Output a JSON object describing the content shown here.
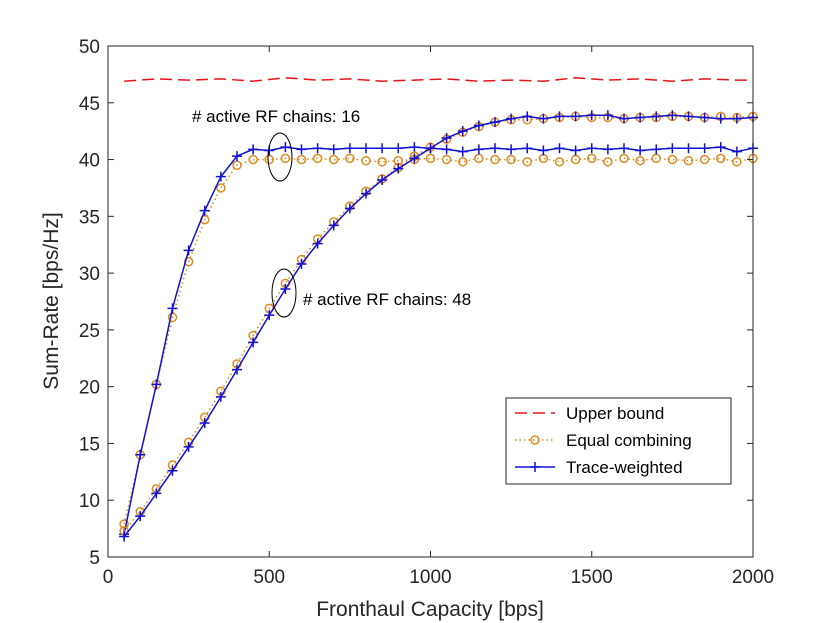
{
  "chart_data": {
    "type": "line",
    "xlabel": "Fronthaul Capacity [bps]",
    "ylabel": "Sum-Rate [bps/Hz]",
    "xlim": [
      0,
      2000
    ],
    "ylim": [
      5,
      50
    ],
    "xticks": [
      0,
      500,
      1000,
      1500,
      2000
    ],
    "yticks": [
      5,
      10,
      15,
      20,
      25,
      30,
      35,
      40,
      45,
      50
    ],
    "grid": false,
    "legend_position": "bottom-right",
    "annotations": [
      {
        "text": "# active RF chains: 16",
        "x": 540,
        "y": 40.2
      },
      {
        "text": "# active RF chains: 48",
        "x": 540,
        "y": 28.2
      }
    ],
    "series": [
      {
        "name": "Upper bound",
        "color": "#e8141b",
        "style": "dashed",
        "marker": "none",
        "x": [
          50,
          150,
          250,
          350,
          450,
          550,
          650,
          750,
          850,
          950,
          1050,
          1150,
          1250,
          1350,
          1450,
          1550,
          1650,
          1750,
          1850,
          1950,
          2000
        ],
        "y": [
          46.9,
          47.1,
          47.0,
          47.1,
          46.9,
          47.2,
          47.0,
          47.1,
          46.9,
          47.0,
          47.1,
          46.9,
          47.0,
          46.9,
          47.2,
          47.0,
          47.1,
          46.9,
          47.1,
          47.0,
          47.0
        ]
      },
      {
        "name": "Equal combining",
        "color": "#dd8a1e",
        "style": "dotted",
        "marker": "circle",
        "x": [
          50,
          100,
          150,
          200,
          250,
          300,
          350,
          400,
          450,
          500,
          550,
          600,
          650,
          700,
          750,
          800,
          850,
          900,
          950,
          1000,
          1050,
          1100,
          1150,
          1200,
          1250,
          1300,
          1350,
          1400,
          1450,
          1500,
          1550,
          1600,
          1650,
          1700,
          1750,
          1800,
          1850,
          1900,
          1950,
          2000
        ],
        "y": [
          7.9,
          14.0,
          20.2,
          26.1,
          31.0,
          34.7,
          37.5,
          39.5,
          40.0,
          40.0,
          40.1,
          40.0,
          40.1,
          40.0,
          40.1,
          39.9,
          39.8,
          39.9,
          40.0,
          40.1,
          40.0,
          39.8,
          40.1,
          40.0,
          40.0,
          39.8,
          40.1,
          39.8,
          40.0,
          40.1,
          39.8,
          40.1,
          39.9,
          40.1,
          40.0,
          39.9,
          40.0,
          40.1,
          39.8,
          40.1
        ]
      },
      {
        "name": "Trace-weighted",
        "color": "#1010d8",
        "style": "solid",
        "marker": "plus",
        "x": [
          50,
          100,
          150,
          200,
          250,
          300,
          350,
          400,
          450,
          500,
          550,
          600,
          650,
          700,
          750,
          800,
          850,
          900,
          950,
          1000,
          1050,
          1100,
          1150,
          1200,
          1250,
          1300,
          1350,
          1400,
          1450,
          1500,
          1550,
          1600,
          1650,
          1700,
          1750,
          1800,
          1850,
          1900,
          1950,
          2000
        ],
        "y": [
          7.0,
          14.0,
          20.2,
          26.9,
          32.0,
          35.5,
          38.5,
          40.3,
          40.9,
          40.8,
          41.1,
          40.9,
          41.0,
          40.9,
          41.0,
          41.0,
          41.0,
          41.0,
          41.1,
          41.0,
          40.9,
          40.7,
          40.9,
          41.0,
          40.9,
          41.0,
          40.8,
          41.0,
          40.8,
          41.0,
          40.9,
          41.0,
          40.8,
          40.9,
          41.0,
          41.0,
          41.0,
          41.1,
          40.7,
          41.0
        ]
      },
      {
        "name": "Equal combining",
        "color": "#dd8a1e",
        "style": "dotted",
        "marker": "circle",
        "x": [
          50,
          100,
          150,
          200,
          250,
          300,
          350,
          400,
          450,
          500,
          550,
          600,
          650,
          700,
          750,
          800,
          850,
          900,
          950,
          1000,
          1050,
          1100,
          1150,
          1200,
          1250,
          1300,
          1350,
          1400,
          1450,
          1500,
          1550,
          1600,
          1650,
          1700,
          1750,
          1800,
          1850,
          1900,
          1950,
          2000
        ],
        "y": [
          7.3,
          9.0,
          11.0,
          13.1,
          15.1,
          17.3,
          19.6,
          22.0,
          24.5,
          26.9,
          29.1,
          31.2,
          33.0,
          34.5,
          35.9,
          37.2,
          38.3,
          39.3,
          40.3,
          41.1,
          41.8,
          42.4,
          42.9,
          43.3,
          43.5,
          43.5,
          43.6,
          43.7,
          43.8,
          43.7,
          43.7,
          43.6,
          43.7,
          43.7,
          43.8,
          43.8,
          43.7,
          43.8,
          43.7,
          43.8
        ]
      },
      {
        "name": "Trace-weighted",
        "color": "#1010d8",
        "style": "solid",
        "marker": "plus",
        "x": [
          50,
          100,
          150,
          200,
          250,
          300,
          350,
          400,
          450,
          500,
          550,
          600,
          650,
          700,
          750,
          800,
          850,
          900,
          950,
          1000,
          1050,
          1100,
          1150,
          1200,
          1250,
          1300,
          1350,
          1400,
          1450,
          1500,
          1550,
          1600,
          1650,
          1700,
          1750,
          1800,
          1850,
          1900,
          1950,
          2000
        ],
        "y": [
          6.8,
          8.6,
          10.6,
          12.6,
          14.7,
          16.8,
          19.1,
          21.5,
          23.9,
          26.3,
          28.6,
          30.8,
          32.6,
          34.2,
          35.7,
          37.0,
          38.2,
          39.2,
          40.1,
          41.0,
          41.9,
          42.5,
          43.0,
          43.3,
          43.6,
          43.8,
          43.6,
          43.8,
          43.8,
          43.9,
          43.9,
          43.6,
          43.7,
          43.8,
          43.9,
          43.8,
          43.7,
          43.6,
          43.6,
          43.7
        ]
      }
    ],
    "legend": [
      "Upper bound",
      "Equal combining",
      "Trace-weighted"
    ]
  }
}
